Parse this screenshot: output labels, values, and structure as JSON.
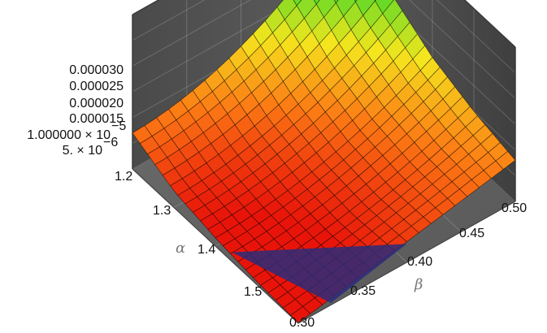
{
  "chart_data": {
    "type": "surface3d",
    "title": "",
    "xlabel": "β",
    "ylabel": "α",
    "zlabel": "",
    "beta_range": [
      0.3,
      0.5
    ],
    "alpha_range": [
      1.2,
      1.6
    ],
    "z_range": [
      0,
      3e-05
    ],
    "beta_ticks": [
      "0.30",
      "0.35",
      "0.40",
      "0.45",
      "0.50"
    ],
    "alpha_ticks": [
      "1.2",
      "1.3",
      "1.4",
      "1.5"
    ],
    "z_ticks": [
      "5. × 10",
      "1.000000 × 10",
      "0.000015",
      "0.000020",
      "0.000025",
      "0.000030"
    ],
    "z_tick_exponent": "−6",
    "z_tick_exponent_2": "−5",
    "grid": true,
    "colormap": "rainbow",
    "surface_samples": {
      "beta": [
        0.3,
        0.35,
        0.4,
        0.45,
        0.5
      ],
      "alpha": [
        1.2,
        1.3,
        1.4,
        1.5,
        1.6
      ],
      "z_at_beta_0_30": [
        7e-06,
        3.2e-06,
        1.6e-06,
        6e-07,
        1e-07
      ],
      "z_at_beta_0_40": [
        1.2e-05,
        7e-06,
        4.5e-06,
        3.5e-06,
        4e-06
      ],
      "z_at_beta_0_50": [
        2.6e-05,
        1.8e-05,
        1.3e-05,
        1e-05,
        8e-06
      ]
    }
  }
}
